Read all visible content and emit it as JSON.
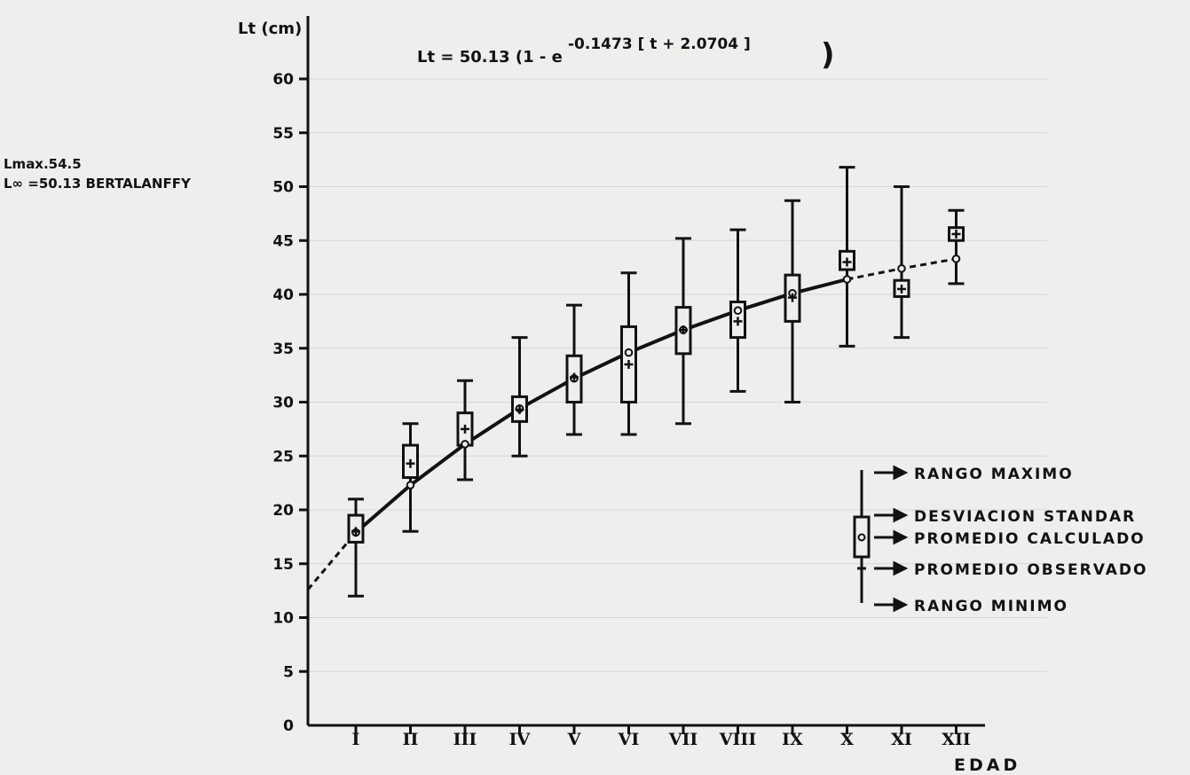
{
  "chart_data": {
    "type": "box-plot-with-growth-curve",
    "ylabel": "Lt (cm)",
    "xlabel": "EDAD",
    "formula": {
      "prefix": "Lt = 50.13 (1 - e",
      "exponent": "-0.1473 [ t + 2.0704 ]",
      "suffix": ")"
    },
    "notes": [
      "Lmax.54.5",
      "L∞ =50.13 BERTALANFFY"
    ],
    "ylim": [
      0,
      65
    ],
    "yticks": [
      0,
      5,
      10,
      15,
      20,
      25,
      30,
      35,
      40,
      45,
      50,
      55,
      60
    ],
    "categories": [
      "I",
      "II",
      "III",
      "IV",
      "V",
      "VI",
      "VII",
      "VIII",
      "IX",
      "X",
      "XI",
      "XII"
    ],
    "boxes": [
      {
        "age": "I",
        "min": 12,
        "max": 21,
        "sd_low": 17,
        "sd_high": 19.5,
        "observed": 18,
        "calculated": 17.9
      },
      {
        "age": "II",
        "min": 18,
        "max": 28,
        "sd_low": 23,
        "sd_high": 26,
        "observed": 24.3,
        "calculated": 22.3
      },
      {
        "age": "III",
        "min": 22.8,
        "max": 32,
        "sd_low": 26,
        "sd_high": 29,
        "observed": 27.5,
        "calculated": 26.1
      },
      {
        "age": "IV",
        "min": 25,
        "max": 36,
        "sd_low": 28.2,
        "sd_high": 30.5,
        "observed": 29.3,
        "calculated": 29.4
      },
      {
        "age": "V",
        "min": 27,
        "max": 39,
        "sd_low": 30,
        "sd_high": 34.3,
        "observed": 32.3,
        "calculated": 32.2
      },
      {
        "age": "VI",
        "min": 27,
        "max": 42,
        "sd_low": 30,
        "sd_high": 37,
        "observed": 33.5,
        "calculated": 34.6
      },
      {
        "age": "VII",
        "min": 28,
        "max": 45.2,
        "sd_low": 34.5,
        "sd_high": 38.8,
        "observed": 36.7,
        "calculated": 36.7
      },
      {
        "age": "VIII",
        "min": 31,
        "max": 46,
        "sd_low": 36,
        "sd_high": 39.3,
        "observed": 37.5,
        "calculated": 38.5
      },
      {
        "age": "IX",
        "min": 30,
        "max": 48.7,
        "sd_low": 37.5,
        "sd_high": 41.8,
        "observed": 39.7,
        "calculated": 40.1
      },
      {
        "age": "X",
        "min": 35.2,
        "max": 51.8,
        "sd_low": 42.3,
        "sd_high": 44,
        "observed": 43,
        "calculated": 41.4
      },
      {
        "age": "XI",
        "min": 36,
        "max": 50,
        "sd_low": 39.8,
        "sd_high": 41.3,
        "observed": 40.5,
        "calculated": 42.4
      },
      {
        "age": "XII",
        "min": 41,
        "max": 47.8,
        "sd_low": 45,
        "sd_high": 46.2,
        "observed": 45.6,
        "calculated": 43.3
      }
    ],
    "curve": {
      "type": "von-bertalanffy",
      "Linf": 50.13,
      "K": 0.1473,
      "t0": -2.0704,
      "origin_value": 12.6
    },
    "legend": [
      {
        "key": "max",
        "label": "RANGO MAXIMO"
      },
      {
        "key": "sd",
        "label": "DESVIACION STANDAR"
      },
      {
        "key": "calc",
        "label": "PROMEDIO CALCULADO"
      },
      {
        "key": "obs",
        "label": "PROMEDIO OBSERVADO"
      },
      {
        "key": "min",
        "label": "RANGO MINIMO"
      }
    ]
  }
}
